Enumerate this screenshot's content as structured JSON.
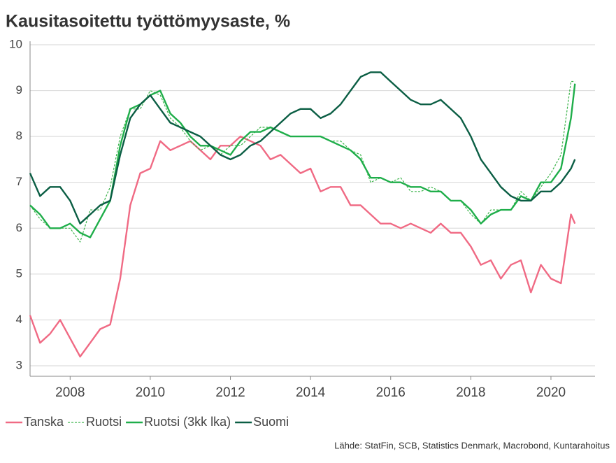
{
  "chart_data": {
    "type": "line",
    "title": "Kausitasoitettu työttömyysaste, %",
    "source": "Lähde: StatFin, SCB, Statistics Denmark, Macrobond, Kuntarahoitus",
    "x": [
      2007,
      2007.25,
      2007.5,
      2007.75,
      2008,
      2008.25,
      2008.5,
      2008.75,
      2009,
      2009.25,
      2009.5,
      2009.75,
      2010,
      2010.25,
      2010.5,
      2010.75,
      2011,
      2011.25,
      2011.5,
      2011.75,
      2012,
      2012.25,
      2012.5,
      2012.75,
      2013,
      2013.25,
      2013.5,
      2013.75,
      2014,
      2014.25,
      2014.5,
      2014.75,
      2015,
      2015.25,
      2015.5,
      2015.75,
      2016,
      2016.25,
      2016.5,
      2016.75,
      2017,
      2017.25,
      2017.5,
      2017.75,
      2018,
      2018.25,
      2018.5,
      2018.75,
      2019,
      2019.25,
      2019.5,
      2019.75,
      2020,
      2020.25,
      2020.5,
      2020.6
    ],
    "series": [
      {
        "name": "Tanska",
        "color": "#f06a84",
        "dashed": false,
        "values": [
          4.1,
          3.5,
          3.7,
          4.0,
          3.6,
          3.2,
          3.5,
          3.8,
          3.9,
          4.9,
          6.5,
          7.2,
          7.3,
          7.9,
          7.7,
          7.8,
          7.9,
          7.7,
          7.5,
          7.8,
          7.8,
          8.0,
          7.9,
          7.8,
          7.5,
          7.6,
          7.4,
          7.2,
          7.3,
          6.8,
          6.9,
          6.9,
          6.5,
          6.5,
          6.3,
          6.1,
          6.1,
          6.0,
          6.1,
          6.0,
          5.9,
          6.1,
          5.9,
          5.9,
          5.6,
          5.2,
          5.3,
          4.9,
          5.2,
          5.3,
          4.6,
          5.2,
          4.9,
          4.8,
          6.3,
          6.1
        ]
      },
      {
        "name": "Ruotsi",
        "color": "#3cb44b",
        "dashed": true,
        "values": [
          6.5,
          6.2,
          6.0,
          6.0,
          6.0,
          5.7,
          6.4,
          6.4,
          6.9,
          8.0,
          8.6,
          8.6,
          9.0,
          8.9,
          8.4,
          8.2,
          7.9,
          7.7,
          7.8,
          7.6,
          7.8,
          7.8,
          8.0,
          8.2,
          8.2,
          8.1,
          8.0,
          8.0,
          8.0,
          8.0,
          7.9,
          7.9,
          7.7,
          7.6,
          7.0,
          7.1,
          7.0,
          7.1,
          6.8,
          6.8,
          6.9,
          6.8,
          6.6,
          6.6,
          6.3,
          6.1,
          6.4,
          6.4,
          6.4,
          6.8,
          6.6,
          6.9,
          7.2,
          7.6,
          9.2,
          9.2
        ]
      },
      {
        "name": "Ruotsi (3kk lka)",
        "color": "#1fae4a",
        "dashed": false,
        "values": [
          6.5,
          6.3,
          6.0,
          6.0,
          6.1,
          5.9,
          5.8,
          6.2,
          6.6,
          7.8,
          8.6,
          8.7,
          8.9,
          9.0,
          8.5,
          8.3,
          8.0,
          7.8,
          7.8,
          7.7,
          7.6,
          7.9,
          8.1,
          8.1,
          8.2,
          8.1,
          8.0,
          8.0,
          8.0,
          8.0,
          7.9,
          7.8,
          7.7,
          7.5,
          7.1,
          7.1,
          7.0,
          7.0,
          6.9,
          6.9,
          6.8,
          6.8,
          6.6,
          6.6,
          6.4,
          6.1,
          6.3,
          6.4,
          6.4,
          6.7,
          6.6,
          7.0,
          7.0,
          7.3,
          8.4,
          9.15
        ]
      },
      {
        "name": "Suomi",
        "color": "#0b5e44",
        "dashed": false,
        "values": [
          7.2,
          6.7,
          6.9,
          6.9,
          6.6,
          6.1,
          6.3,
          6.5,
          6.6,
          7.6,
          8.4,
          8.7,
          8.9,
          8.6,
          8.3,
          8.2,
          8.1,
          8.0,
          7.8,
          7.6,
          7.5,
          7.6,
          7.8,
          7.9,
          8.1,
          8.3,
          8.5,
          8.6,
          8.6,
          8.4,
          8.5,
          8.7,
          9.0,
          9.3,
          9.4,
          9.4,
          9.2,
          9.0,
          8.8,
          8.7,
          8.7,
          8.8,
          8.6,
          8.4,
          8.0,
          7.5,
          7.2,
          6.9,
          6.7,
          6.6,
          6.6,
          6.8,
          6.8,
          7.0,
          7.3,
          7.5
        ]
      }
    ],
    "xlim": [
      2007,
      2021.1
    ],
    "xticks": [
      2008,
      2010,
      2012,
      2014,
      2016,
      2018,
      2020
    ],
    "ylim": [
      3,
      10
    ],
    "yticks": [
      3,
      4,
      5,
      6,
      7,
      8,
      9,
      10
    ],
    "grid": true,
    "legend": "bottom"
  }
}
